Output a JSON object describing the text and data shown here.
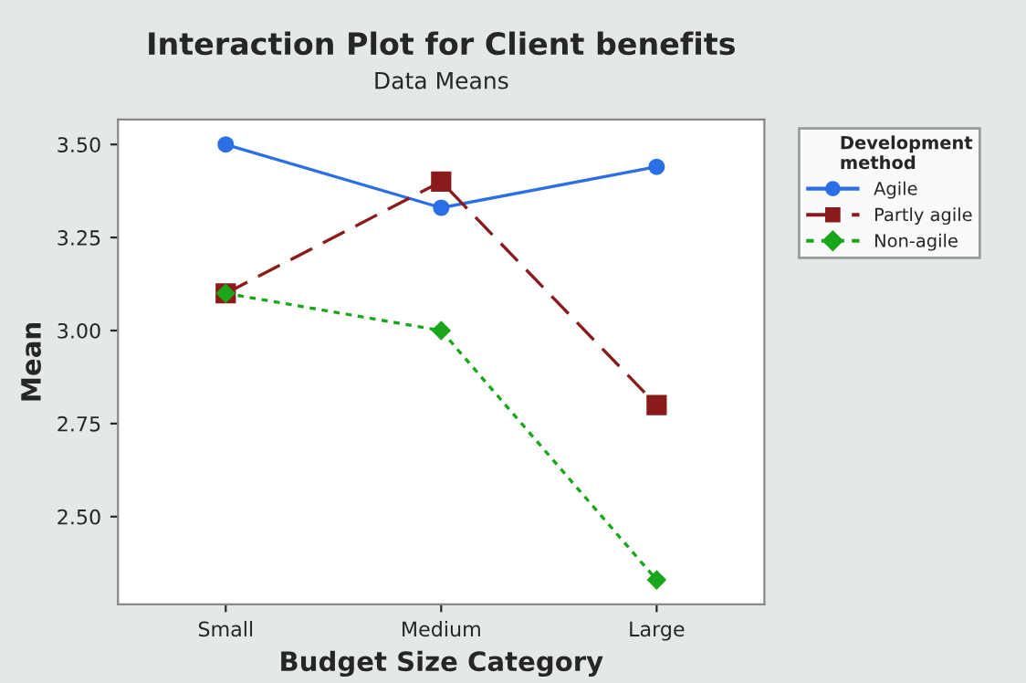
{
  "chart_data": {
    "type": "line",
    "title": "Interaction Plot for Client benefits",
    "subtitle": "Data Means",
    "xlabel": "Budget Size Category",
    "ylabel": "Mean",
    "legend_title": "Development\nmethod",
    "categories": [
      "Small",
      "Medium",
      "Large"
    ],
    "series": [
      {
        "name": "Agile",
        "color": "#2a6fe6",
        "values": [
          3.5,
          3.33,
          3.44
        ],
        "marker": "circle",
        "line_style": "solid"
      },
      {
        "name": "Partly agile",
        "color": "#8b1a1a",
        "values": [
          3.1,
          3.4,
          2.8
        ],
        "marker": "square",
        "line_style": "dashed"
      },
      {
        "name": "Non-agile",
        "color": "#1aa61a",
        "values": [
          3.1,
          3.0,
          2.33
        ],
        "marker": "diamond",
        "line_style": "dotted"
      }
    ],
    "ylim": [
      2.264,
      3.567
    ],
    "yticks": [
      {
        "value": 2.5,
        "label": "2.50"
      },
      {
        "value": 2.75,
        "label": "2.75"
      },
      {
        "value": 3.0,
        "label": "3.00"
      },
      {
        "value": 3.25,
        "label": "3.25"
      },
      {
        "value": 3.5,
        "label": "3.50"
      }
    ],
    "grid": false,
    "legend": "right"
  }
}
